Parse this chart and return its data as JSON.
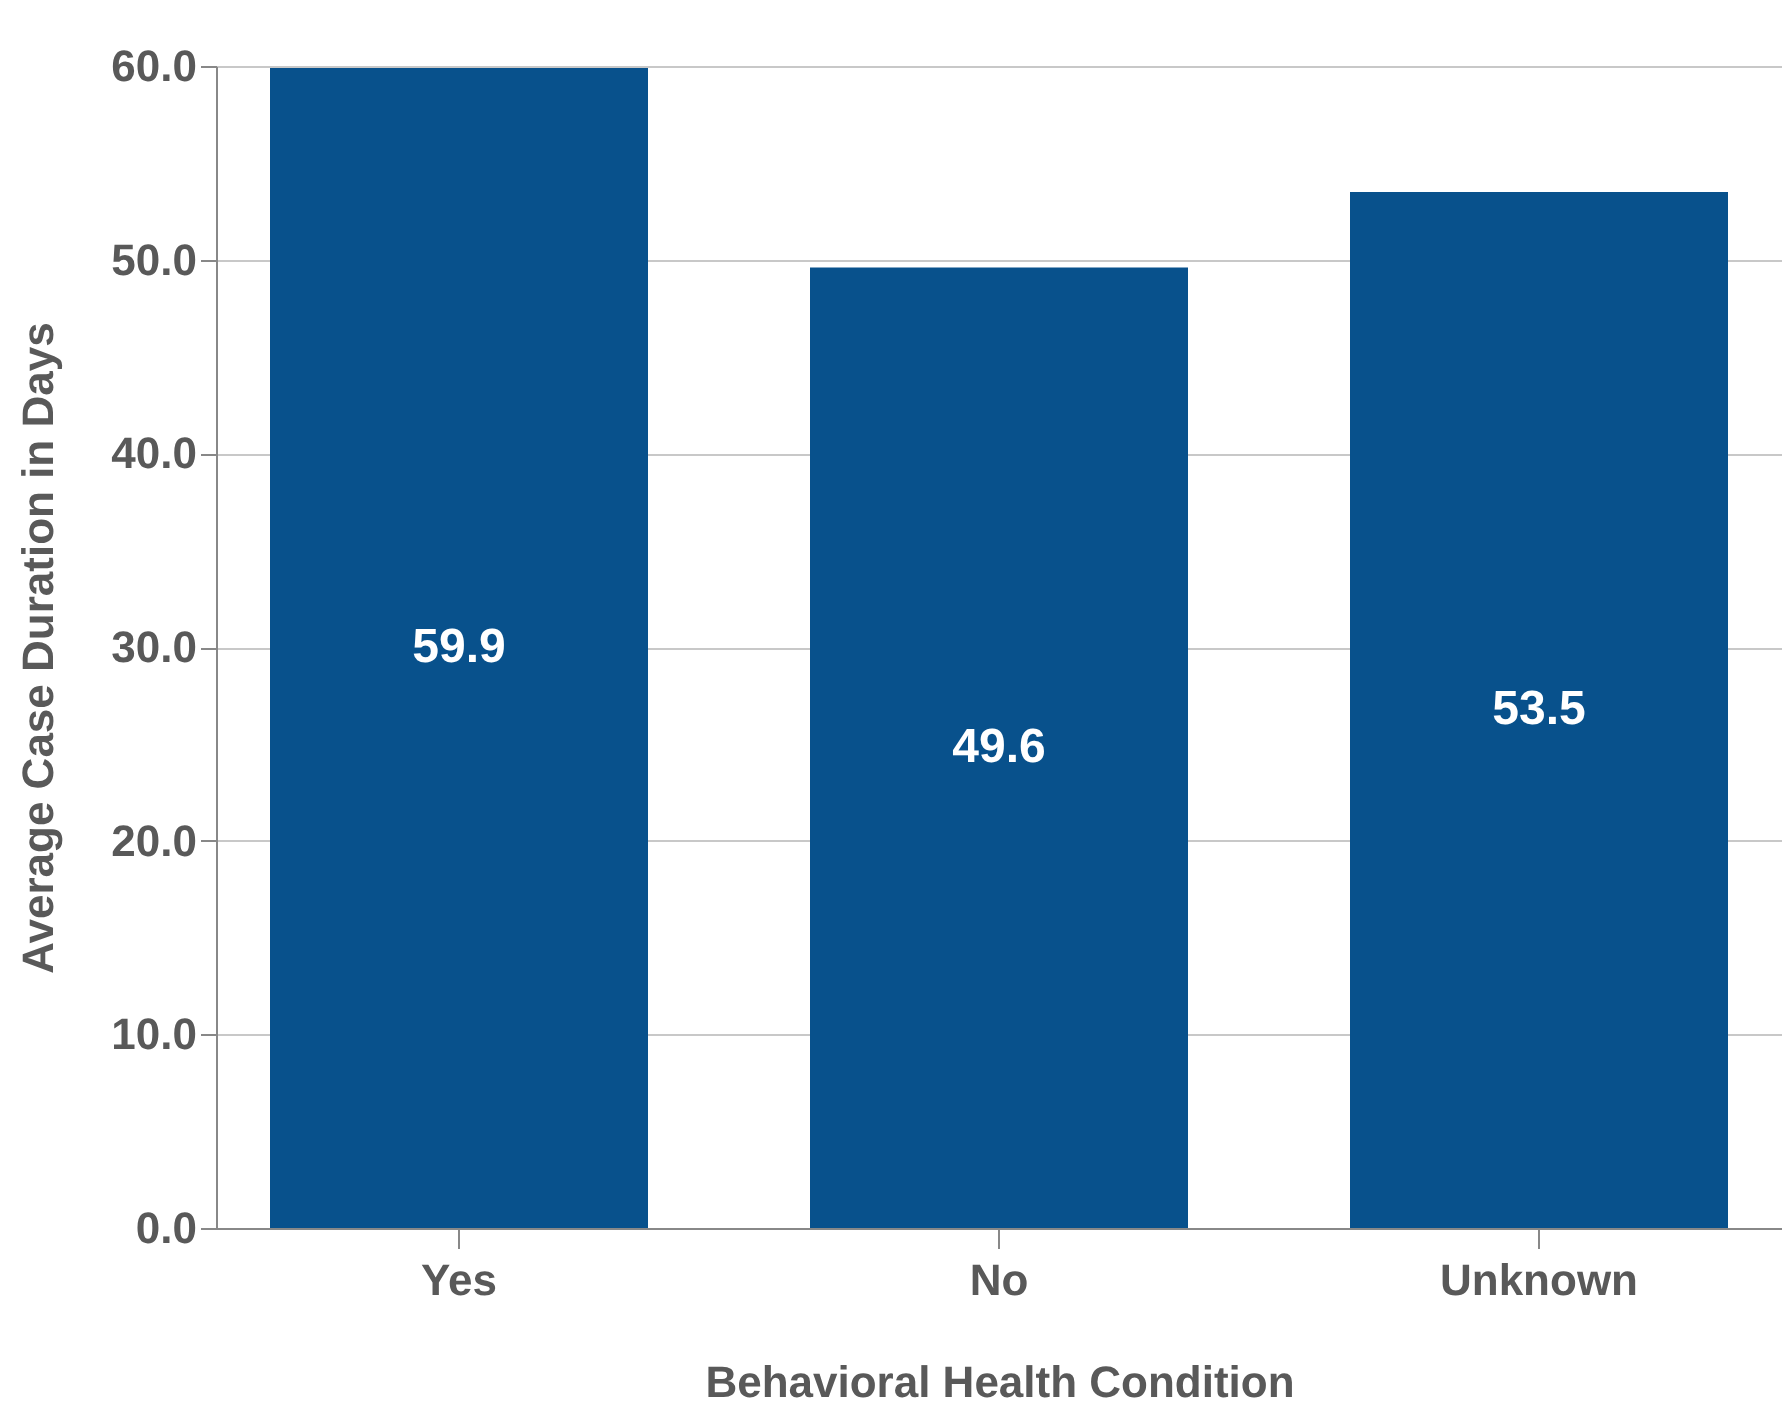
{
  "chart_data": {
    "type": "bar",
    "xlabel": "Behavioral Health Condition",
    "ylabel": "Average Case Duration in Days",
    "categories": [
      "Yes",
      "No",
      "Unknown"
    ],
    "values": [
      59.9,
      49.6,
      53.5
    ],
    "color": "#08518c",
    "ylim": [
      0,
      60
    ],
    "yticks": [
      {
        "value": 0,
        "label": "0.0"
      },
      {
        "value": 10,
        "label": "10.0"
      },
      {
        "value": 20,
        "label": "20.0"
      },
      {
        "value": 30,
        "label": "30.0"
      },
      {
        "value": 40,
        "label": "40.0"
      },
      {
        "value": 50,
        "label": "50.0"
      },
      {
        "value": 60,
        "label": "60.0"
      }
    ],
    "grid": "y",
    "data_labels": true
  }
}
